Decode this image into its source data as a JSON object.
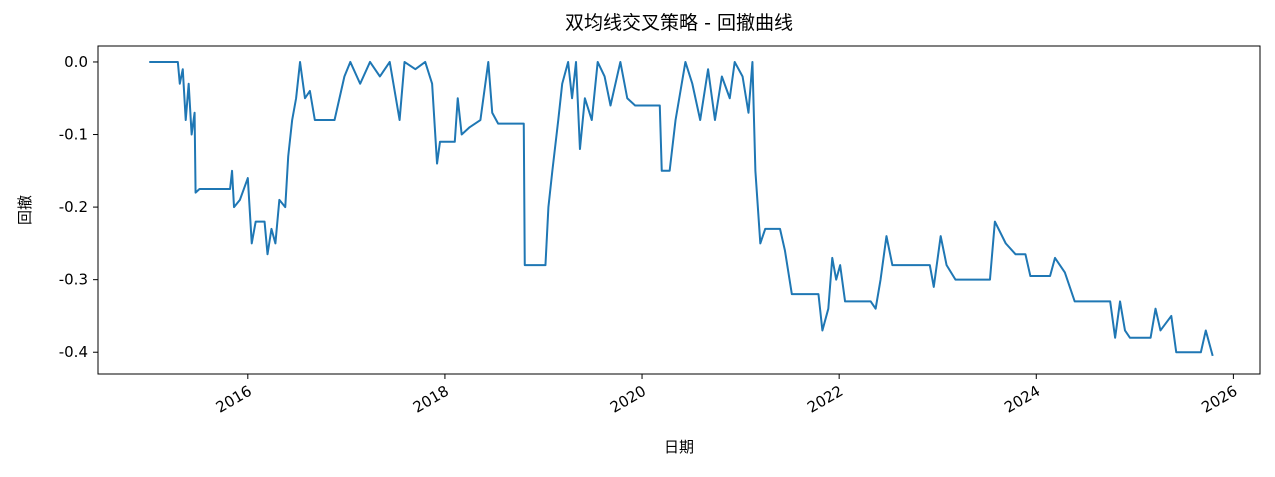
{
  "chart_data": {
    "type": "line",
    "title": "双均线交叉策略 - 回撤曲线",
    "xlabel": "日期",
    "ylabel": "回撤",
    "color": "#1f77b4",
    "x": [
      2015.0,
      2015.29,
      2015.31,
      2015.34,
      2015.37,
      2015.4,
      2015.43,
      2015.46,
      2015.47,
      2015.51,
      2015.82,
      2015.84,
      2015.86,
      2015.92,
      2016.0,
      2016.04,
      2016.08,
      2016.17,
      2016.2,
      2016.24,
      2016.28,
      2016.32,
      2016.38,
      2016.41,
      2016.45,
      2016.49,
      2016.53,
      2016.58,
      2016.63,
      2016.68,
      2016.88,
      2016.93,
      2016.98,
      2017.04,
      2017.14,
      2017.24,
      2017.34,
      2017.44,
      2017.54,
      2017.59,
      2017.7,
      2017.8,
      2017.87,
      2017.92,
      2017.95,
      2018.1,
      2018.13,
      2018.17,
      2018.25,
      2018.36,
      2018.44,
      2018.48,
      2018.54,
      2018.8,
      2018.81,
      2019.02,
      2019.05,
      2019.09,
      2019.15,
      2019.19,
      2019.25,
      2019.29,
      2019.33,
      2019.37,
      2019.42,
      2019.49,
      2019.55,
      2019.62,
      2019.68,
      2019.78,
      2019.85,
      2019.93,
      2020.18,
      2020.2,
      2020.28,
      2020.34,
      2020.39,
      2020.44,
      2020.51,
      2020.59,
      2020.67,
      2020.74,
      2020.81,
      2020.89,
      2020.94,
      2021.02,
      2021.08,
      2021.12,
      2021.15,
      2021.2,
      2021.25,
      2021.4,
      2021.45,
      2021.52,
      2021.79,
      2021.83,
      2021.89,
      2021.93,
      2021.97,
      2022.01,
      2022.06,
      2022.32,
      2022.37,
      2022.42,
      2022.48,
      2022.54,
      2022.92,
      2022.96,
      2023.03,
      2023.09,
      2023.18,
      2023.53,
      2023.58,
      2023.69,
      2023.79,
      2023.89,
      2023.94,
      2024.14,
      2024.19,
      2024.29,
      2024.39,
      2024.75,
      2024.8,
      2024.85,
      2024.9,
      2024.95,
      2025.16,
      2025.21,
      2025.26,
      2025.37,
      2025.42,
      2025.67,
      2025.72,
      2025.79
    ],
    "values": [
      0,
      0,
      -0.03,
      -0.01,
      -0.08,
      -0.03,
      -0.1,
      -0.07,
      -0.18,
      -0.175,
      -0.175,
      -0.15,
      -0.2,
      -0.19,
      -0.16,
      -0.25,
      -0.22,
      -0.22,
      -0.265,
      -0.23,
      -0.25,
      -0.19,
      -0.2,
      -0.13,
      -0.08,
      -0.05,
      0,
      -0.05,
      -0.04,
      -0.08,
      -0.08,
      -0.05,
      -0.02,
      0,
      -0.03,
      0,
      -0.02,
      0,
      -0.08,
      0,
      -0.01,
      0,
      -0.03,
      -0.14,
      -0.11,
      -0.11,
      -0.05,
      -0.1,
      -0.09,
      -0.08,
      0,
      -0.07,
      -0.085,
      -0.085,
      -0.28,
      -0.28,
      -0.2,
      -0.15,
      -0.08,
      -0.03,
      0,
      -0.05,
      0,
      -0.12,
      -0.05,
      -0.08,
      0,
      -0.02,
      -0.06,
      0,
      -0.05,
      -0.06,
      -0.06,
      -0.15,
      -0.15,
      -0.08,
      -0.04,
      0,
      -0.03,
      -0.08,
      -0.01,
      -0.08,
      -0.02,
      -0.05,
      0,
      -0.02,
      -0.07,
      0,
      -0.15,
      -0.25,
      -0.23,
      -0.23,
      -0.26,
      -0.32,
      -0.32,
      -0.37,
      -0.34,
      -0.27,
      -0.3,
      -0.28,
      -0.33,
      -0.33,
      -0.34,
      -0.3,
      -0.24,
      -0.28,
      -0.28,
      -0.31,
      -0.24,
      -0.28,
      -0.3,
      -0.3,
      -0.22,
      -0.25,
      -0.265,
      -0.265,
      -0.295,
      -0.295,
      -0.27,
      -0.29,
      -0.33,
      -0.33,
      -0.38,
      -0.33,
      -0.37,
      -0.38,
      -0.38,
      -0.34,
      -0.37,
      -0.35,
      -0.4,
      -0.4,
      -0.37,
      -0.405
    ],
    "xlim": [
      2014.48,
      2026.27
    ],
    "xticks": [
      2016,
      2018,
      2020,
      2022,
      2024,
      2026
    ],
    "ylim": [
      -0.43,
      0.022
    ],
    "yticks": [
      {
        "value": 0,
        "label": "0.0"
      },
      -0.1,
      -0.2,
      -0.3,
      -0.4
    ]
  }
}
